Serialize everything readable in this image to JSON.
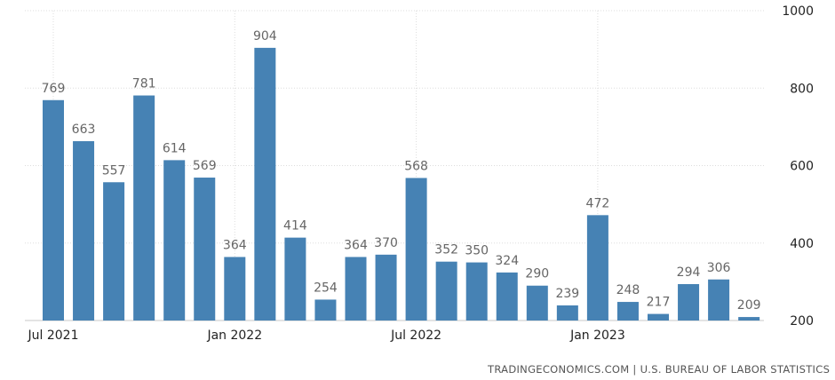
{
  "chart_data": {
    "type": "bar",
    "x": [
      "2021-07",
      "2021-08",
      "2021-09",
      "2021-10",
      "2021-11",
      "2021-12",
      "2022-01",
      "2022-02",
      "2022-03",
      "2022-04",
      "2022-05",
      "2022-06",
      "2022-07",
      "2022-08",
      "2022-09",
      "2022-10",
      "2022-11",
      "2022-12",
      "2023-01",
      "2023-02",
      "2023-03",
      "2023-04",
      "2023-05",
      "2023-06"
    ],
    "values": [
      769,
      663,
      557,
      781,
      614,
      569,
      364,
      904,
      414,
      254,
      364,
      370,
      568,
      352,
      350,
      324,
      290,
      239,
      472,
      248,
      217,
      294,
      306,
      209
    ],
    "data_labels": [
      "769",
      "663",
      "557",
      "781",
      "614",
      "569",
      "364",
      "904",
      "414",
      "254",
      "364",
      "370",
      "568",
      "352",
      "350",
      "324",
      "290",
      "239",
      "472",
      "248",
      "217",
      "294",
      "306",
      "209"
    ],
    "ylim": [
      200,
      1000
    ],
    "yticks": [
      "200",
      "400",
      "600",
      "800",
      "1000"
    ],
    "xticks": [
      {
        "index": 0,
        "label": "Jul 2021"
      },
      {
        "index": 6,
        "label": "Jan 2022"
      },
      {
        "index": 12,
        "label": "Jul 2022"
      },
      {
        "index": 18,
        "label": "Jan 2023"
      }
    ],
    "grid": true,
    "bar_color": "#4682b4",
    "grid_color": "#dddddd",
    "source": "TRADINGECONOMICS.COM | U.S. BUREAU OF LABOR STATISTICS"
  }
}
